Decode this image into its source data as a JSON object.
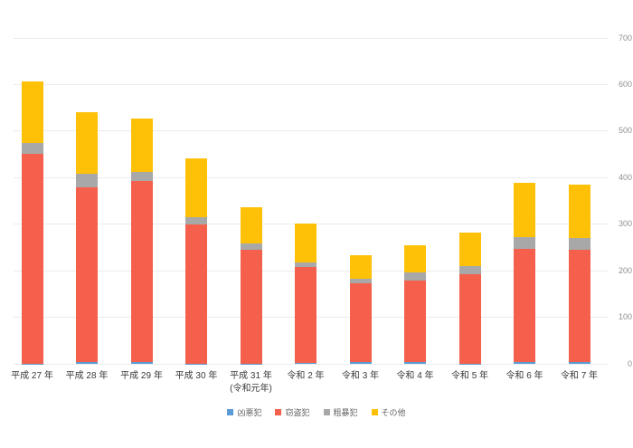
{
  "chart_data": {
    "type": "bar",
    "stacked": true,
    "title": "",
    "xlabel": "",
    "ylabel": "",
    "ylim": [
      0,
      700
    ],
    "yticks": [
      0,
      100,
      200,
      300,
      400,
      500,
      600,
      700
    ],
    "y_axis_side": "right",
    "grid": true,
    "legend_position": "bottom",
    "categories": [
      "平成 27 年",
      "平成 28 年",
      "平成 29 年",
      "平成 30 年",
      "平成 31 年\n(令和元年)",
      "令和 2 年",
      "令和 3 年",
      "令和 4 年",
      "令和 5 年",
      "令和 6 年",
      "令和 7 年"
    ],
    "series": [
      {
        "name": "凶悪犯",
        "color": "#5B9BD5",
        "values": [
          1,
          4,
          4,
          1,
          1,
          2,
          4,
          4,
          1,
          4,
          4
        ]
      },
      {
        "name": "窃盗犯",
        "color": "#F5604D",
        "values": [
          450,
          376,
          389,
          299,
          245,
          206,
          169,
          174,
          191,
          243,
          241
        ]
      },
      {
        "name": "粗暴犯",
        "color": "#A8A8A8",
        "values": [
          23,
          28,
          19,
          15,
          12,
          10,
          9,
          18,
          18,
          26,
          26
        ]
      },
      {
        "name": "その他",
        "color": "#FFC107",
        "values": [
          132,
          132,
          115,
          126,
          79,
          84,
          51,
          59,
          73,
          115,
          114
        ]
      }
    ],
    "totals": [
      606,
      540,
      527,
      441,
      337,
      302,
      233,
      255,
      283,
      388,
      385
    ]
  },
  "colors": {
    "background": "#ffffff",
    "gridline": "#ebebeb",
    "y_tick_text": "#909090",
    "x_label_text": "#3a3a3a",
    "legend_text": "#666666"
  }
}
